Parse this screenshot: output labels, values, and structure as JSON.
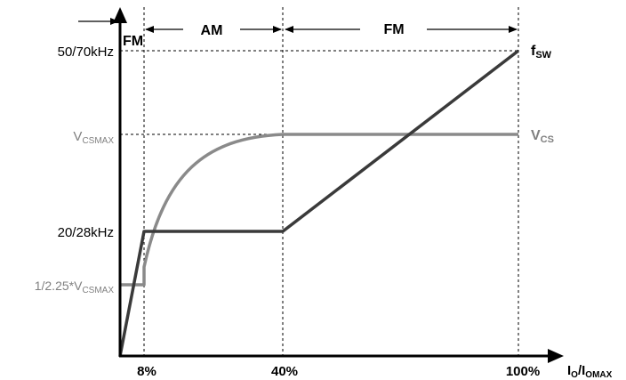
{
  "colors": {
    "axis": "#000000",
    "guide": "#000000",
    "fsw_curve": "#3a3a3a",
    "vcs_curve": "#8a8a8a",
    "gray_label": "#808080"
  },
  "modes": {
    "fm_left": "FM",
    "am": "AM",
    "fm_right": "FM"
  },
  "y_labels": {
    "f_high": "50/70kHz",
    "vcsmax_main": "V",
    "vcsmax_sub": "CSMAX",
    "f_low": "20/28kHz",
    "vcs_low_main": "1/2.25*V",
    "vcs_low_sub": "CSMAX"
  },
  "x_labels": {
    "p8": "8%",
    "p40": "40%",
    "p100": "100%",
    "axis_io": "I",
    "axis_io_sub": "O",
    "axis_slash": "/I",
    "axis_imax_sub": "OMAX"
  },
  "curve_labels": {
    "fsw_main": "f",
    "fsw_sub": "SW",
    "vcs_main": "V",
    "vcs_sub": "CS"
  }
}
